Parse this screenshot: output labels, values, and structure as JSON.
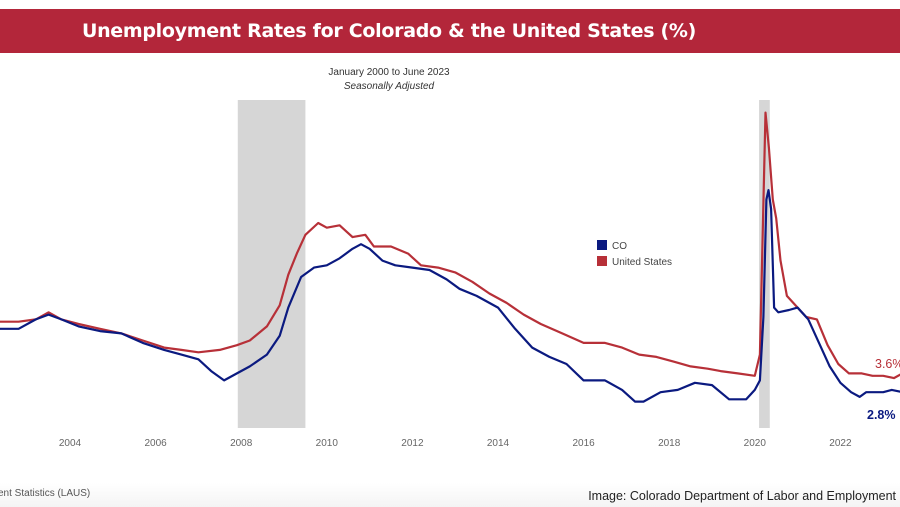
{
  "header": {
    "title": "Unemployment Rates for Colorado & the United States  (%)",
    "subtitle": "January 2000 to June 2023",
    "subtitle2": "Seasonally Adjusted"
  },
  "footer": {
    "source": "ent Statistics (LAUS)",
    "credit": "Image: Colorado Department of Labor and Employment"
  },
  "colors": {
    "co": "#0b1a80",
    "us": "#b73038",
    "recession": "#d6d6d6",
    "banner": "#b3263a"
  },
  "chart_data": {
    "type": "line",
    "title": "Unemployment Rates for Colorado & the United States  (%)",
    "xlabel": "",
    "ylabel": "",
    "xlim": [
      2002.36,
      2023.45
    ],
    "x_ticks": [
      "2004",
      "2006",
      "2008",
      "2010",
      "2012",
      "2014",
      "2016",
      "2018",
      "2020",
      "2022"
    ],
    "grid": false,
    "legend": {
      "placement": "center-right",
      "entries": [
        "CO",
        "United States"
      ]
    },
    "recessions": [
      [
        2007.92,
        2009.5
      ],
      [
        2020.1,
        2020.35
      ]
    ],
    "series": [
      {
        "name": "CO",
        "color": "#0b1a80",
        "end_label": "2.8%",
        "points": [
          [
            2002.36,
            5.5
          ],
          [
            2002.8,
            5.5
          ],
          [
            2003.2,
            5.9
          ],
          [
            2003.5,
            6.1
          ],
          [
            2003.8,
            5.9
          ],
          [
            2004.2,
            5.6
          ],
          [
            2004.7,
            5.4
          ],
          [
            2005.2,
            5.3
          ],
          [
            2005.7,
            4.9
          ],
          [
            2006.2,
            4.6
          ],
          [
            2006.6,
            4.4
          ],
          [
            2007.0,
            4.2
          ],
          [
            2007.3,
            3.7
          ],
          [
            2007.6,
            3.3
          ],
          [
            2007.9,
            3.6
          ],
          [
            2008.2,
            3.9
          ],
          [
            2008.6,
            4.4
          ],
          [
            2008.9,
            5.2
          ],
          [
            2009.1,
            6.4
          ],
          [
            2009.4,
            7.7
          ],
          [
            2009.7,
            8.1
          ],
          [
            2010.0,
            8.2
          ],
          [
            2010.3,
            8.5
          ],
          [
            2010.6,
            8.9
          ],
          [
            2010.8,
            9.1
          ],
          [
            2011.0,
            8.9
          ],
          [
            2011.3,
            8.4
          ],
          [
            2011.6,
            8.2
          ],
          [
            2012.0,
            8.1
          ],
          [
            2012.4,
            8.0
          ],
          [
            2012.8,
            7.6
          ],
          [
            2013.1,
            7.2
          ],
          [
            2013.5,
            6.9
          ],
          [
            2014.0,
            6.4
          ],
          [
            2014.4,
            5.5
          ],
          [
            2014.8,
            4.7
          ],
          [
            2015.2,
            4.3
          ],
          [
            2015.6,
            4.0
          ],
          [
            2016.0,
            3.3
          ],
          [
            2016.5,
            3.3
          ],
          [
            2016.9,
            2.9
          ],
          [
            2017.2,
            2.4
          ],
          [
            2017.4,
            2.4
          ],
          [
            2017.8,
            2.8
          ],
          [
            2018.2,
            2.9
          ],
          [
            2018.6,
            3.2
          ],
          [
            2019.0,
            3.1
          ],
          [
            2019.4,
            2.5
          ],
          [
            2019.8,
            2.5
          ],
          [
            2020.0,
            2.9
          ],
          [
            2020.12,
            3.3
          ],
          [
            2020.2,
            6.0
          ],
          [
            2020.27,
            11.0
          ],
          [
            2020.32,
            11.4
          ],
          [
            2020.38,
            10.6
          ],
          [
            2020.45,
            6.4
          ],
          [
            2020.55,
            6.2
          ],
          [
            2020.8,
            6.3
          ],
          [
            2021.0,
            6.4
          ],
          [
            2021.25,
            5.9
          ],
          [
            2021.5,
            4.9
          ],
          [
            2021.75,
            3.9
          ],
          [
            2022.0,
            3.2
          ],
          [
            2022.25,
            2.8
          ],
          [
            2022.45,
            2.6
          ],
          [
            2022.6,
            2.8
          ],
          [
            2023.0,
            2.8
          ],
          [
            2023.2,
            2.9
          ],
          [
            2023.45,
            2.8
          ]
        ]
      },
      {
        "name": "United States",
        "color": "#b73038",
        "end_label": "3.6%",
        "points": [
          [
            2002.36,
            5.8
          ],
          [
            2002.8,
            5.8
          ],
          [
            2003.2,
            5.9
          ],
          [
            2003.5,
            6.2
          ],
          [
            2003.8,
            5.9
          ],
          [
            2004.2,
            5.7
          ],
          [
            2004.7,
            5.5
          ],
          [
            2005.2,
            5.3
          ],
          [
            2005.7,
            5.0
          ],
          [
            2006.2,
            4.7
          ],
          [
            2006.6,
            4.6
          ],
          [
            2007.0,
            4.5
          ],
          [
            2007.5,
            4.6
          ],
          [
            2007.9,
            4.8
          ],
          [
            2008.2,
            5.0
          ],
          [
            2008.6,
            5.6
          ],
          [
            2008.9,
            6.5
          ],
          [
            2009.1,
            7.8
          ],
          [
            2009.3,
            8.7
          ],
          [
            2009.5,
            9.5
          ],
          [
            2009.8,
            10.0
          ],
          [
            2010.0,
            9.8
          ],
          [
            2010.3,
            9.9
          ],
          [
            2010.6,
            9.4
          ],
          [
            2010.9,
            9.5
          ],
          [
            2011.1,
            9.0
          ],
          [
            2011.5,
            9.0
          ],
          [
            2011.9,
            8.7
          ],
          [
            2012.2,
            8.2
          ],
          [
            2012.6,
            8.1
          ],
          [
            2013.0,
            7.9
          ],
          [
            2013.4,
            7.5
          ],
          [
            2013.8,
            7.0
          ],
          [
            2014.2,
            6.6
          ],
          [
            2014.6,
            6.1
          ],
          [
            2015.0,
            5.7
          ],
          [
            2015.5,
            5.3
          ],
          [
            2016.0,
            4.9
          ],
          [
            2016.5,
            4.9
          ],
          [
            2016.9,
            4.7
          ],
          [
            2017.3,
            4.4
          ],
          [
            2017.7,
            4.3
          ],
          [
            2018.1,
            4.1
          ],
          [
            2018.5,
            3.9
          ],
          [
            2018.9,
            3.8
          ],
          [
            2019.2,
            3.7
          ],
          [
            2019.6,
            3.6
          ],
          [
            2020.0,
            3.5
          ],
          [
            2020.12,
            4.4
          ],
          [
            2020.25,
            14.7
          ],
          [
            2020.33,
            13.2
          ],
          [
            2020.42,
            11.0
          ],
          [
            2020.5,
            10.2
          ],
          [
            2020.6,
            8.4
          ],
          [
            2020.75,
            6.9
          ],
          [
            2021.0,
            6.4
          ],
          [
            2021.2,
            6.0
          ],
          [
            2021.45,
            5.9
          ],
          [
            2021.7,
            4.8
          ],
          [
            2021.95,
            4.0
          ],
          [
            2022.2,
            3.6
          ],
          [
            2022.5,
            3.6
          ],
          [
            2022.75,
            3.5
          ],
          [
            2023.0,
            3.5
          ],
          [
            2023.25,
            3.4
          ],
          [
            2023.45,
            3.6
          ]
        ]
      }
    ]
  }
}
